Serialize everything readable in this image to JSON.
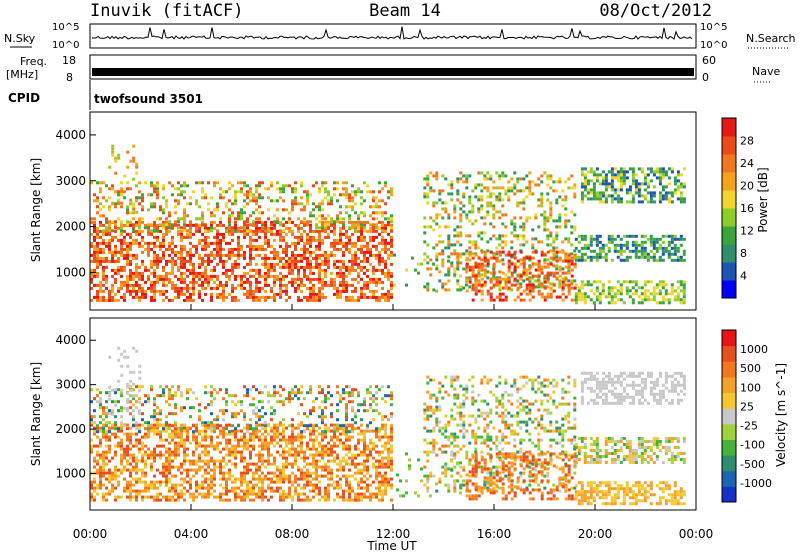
{
  "header": {
    "station": "Inuvik (fitACF)",
    "beam": "Beam 14",
    "date": "08/Oct/2012"
  },
  "strips": {
    "nsky_label": "N.Sky",
    "nsky_ticks": [
      "10^5",
      "10^0"
    ],
    "nsearch_label": "N.Search",
    "nsearch_ticks": [
      "10^5",
      "10^0"
    ],
    "freq_label": [
      "Freq.",
      "[MHz]"
    ],
    "freq_ticks": [
      "18",
      "8"
    ],
    "nave_label": "Nave",
    "nave_ticks": [
      "60",
      "0"
    ],
    "cpid_label": "CPID",
    "cpid_value": "twofsound 3501"
  },
  "chart_data": [
    {
      "type": "heatmap",
      "name": "power",
      "ylabel": "Slant Range [km]",
      "xlabel": "",
      "ylim": [
        180,
        4500
      ],
      "yticks": [
        "1000",
        "2000",
        "3000",
        "4000"
      ],
      "colorbar_label": "Power [dB]",
      "colorbar_ticks": [
        "28",
        "24",
        "20",
        "16",
        "12",
        "8",
        "4"
      ],
      "colors": [
        "#0000ff",
        "#1a55b4",
        "#2e8f6a",
        "#3ca53a",
        "#8ecc2a",
        "#f0d52a",
        "#f6a21a",
        "#f07820",
        "#ec4a18",
        "#e61a14"
      ]
    },
    {
      "type": "heatmap",
      "name": "velocity",
      "ylabel": "Slant Range [km]",
      "xlabel": "Time UT",
      "ylim": [
        180,
        4500
      ],
      "yticks": [
        "1000",
        "2000",
        "3000",
        "4000"
      ],
      "colorbar_label": "Velocity [m s^-1]",
      "colorbar_ticks": [
        "1000",
        "500",
        "100",
        "25",
        "-25",
        "-100",
        "-500",
        "-1000"
      ],
      "colors": [
        "#1432c8",
        "#1e64b4",
        "#2e8f6e",
        "#46b43c",
        "#a0d23c",
        "#c8c8c8",
        "#f5c832",
        "#f5a028",
        "#f07820",
        "#e6501e",
        "#e61414"
      ],
      "xticks": [
        "00:00",
        "04:00",
        "08:00",
        "12:00",
        "16:00",
        "20:00",
        "00:00"
      ]
    }
  ]
}
